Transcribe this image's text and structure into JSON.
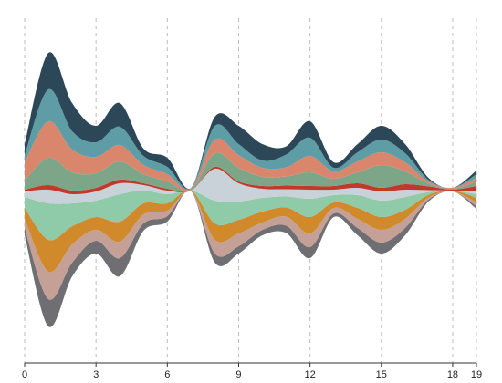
{
  "chart_data": {
    "type": "streamgraph",
    "x": [
      0,
      1,
      2,
      3,
      4,
      5,
      6,
      7,
      8,
      9,
      10,
      11,
      12,
      13,
      14,
      15,
      16,
      17,
      18,
      19
    ],
    "xlim": [
      0,
      19
    ],
    "xticks": [
      0,
      3,
      6,
      9,
      12,
      15,
      18,
      19
    ],
    "grid": true,
    "series": [
      {
        "color": "#6e6e73",
        "values": [
          8,
          30,
          15,
          14,
          20,
          8,
          6,
          0,
          10,
          8,
          6,
          8,
          12,
          4,
          8,
          12,
          8,
          2,
          0,
          3
        ]
      },
      {
        "color": "#c4a096",
        "values": [
          10,
          30,
          20,
          12,
          18,
          10,
          6,
          0,
          15,
          14,
          8,
          10,
          15,
          6,
          10,
          14,
          10,
          2,
          0,
          4
        ]
      },
      {
        "color": "#d18a2b",
        "values": [
          12,
          35,
          20,
          14,
          22,
          12,
          8,
          1,
          18,
          15,
          12,
          10,
          18,
          6,
          12,
          14,
          10,
          3,
          1,
          5
        ]
      },
      {
        "color": "#8fcaa9",
        "values": [
          12,
          40,
          25,
          18,
          30,
          14,
          10,
          0,
          25,
          20,
          15,
          12,
          20,
          8,
          14,
          18,
          14,
          3,
          0,
          4
        ]
      },
      {
        "color": "#c9d1d9",
        "values": [
          6,
          15,
          10,
          10,
          12,
          6,
          4,
          0,
          35,
          20,
          10,
          8,
          10,
          6,
          8,
          10,
          8,
          2,
          0,
          3
        ]
      },
      {
        "color": "#c0392b",
        "values": [
          2,
          5,
          4,
          4,
          4,
          2,
          2,
          0,
          2,
          2,
          3,
          4,
          4,
          4,
          5,
          4,
          6,
          4,
          1,
          6
        ]
      },
      {
        "color": "#7da689",
        "values": [
          10,
          30,
          20,
          16,
          20,
          10,
          8,
          1,
          15,
          15,
          10,
          10,
          15,
          8,
          12,
          25,
          14,
          3,
          1,
          5
        ]
      },
      {
        "color": "#d9866c",
        "values": [
          20,
          40,
          25,
          18,
          18,
          10,
          8,
          1,
          15,
          14,
          10,
          10,
          18,
          8,
          12,
          14,
          10,
          2,
          1,
          4
        ]
      },
      {
        "color": "#5e9da6",
        "values": [
          8,
          35,
          20,
          16,
          20,
          10,
          8,
          1,
          15,
          12,
          8,
          14,
          20,
          4,
          10,
          14,
          10,
          2,
          0,
          4
        ]
      },
      {
        "color": "#2c4858",
        "values": [
          12,
          40,
          31,
          18,
          26,
          8,
          10,
          0,
          10,
          20,
          18,
          9,
          18,
          6,
          9,
          15,
          10,
          2,
          0,
          4
        ]
      }
    ]
  }
}
